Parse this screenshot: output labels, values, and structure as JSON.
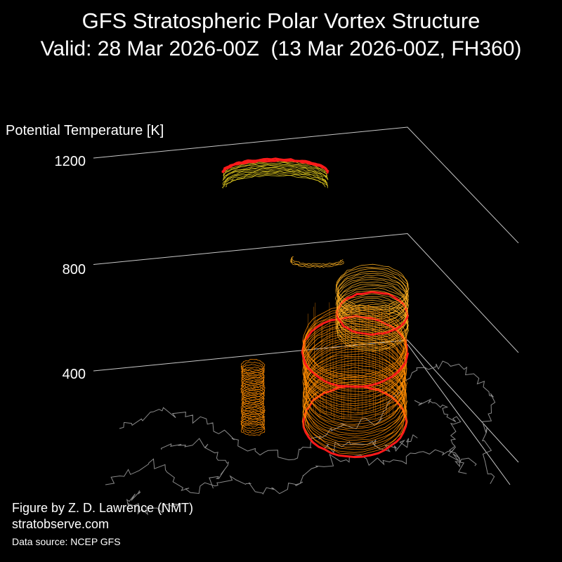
{
  "title": "GFS Stratospheric Polar Vortex Structure",
  "subtitle": "Valid: 28 Mar 2026-00Z  (13 Mar 2026-00Z, FH360)",
  "credit_author": "Figure by Z. D. Lawrence (NMT)",
  "credit_site": "stratobserve.com",
  "credit_source": "Data source: NCEP GFS",
  "colors": {
    "background": "#000000",
    "axis": "#c8c8c8",
    "coast": "#8a8a8a",
    "edge": "#ff1a1a",
    "vortex_low": "#ff8c00",
    "vortex_mid": "#ffb020",
    "vortex_high": "#e8d020"
  },
  "chart_data": {
    "type": "3d-isosurface",
    "zlabel": "Potential Temperature [K]",
    "zticks": [
      "400",
      "800",
      "1200"
    ],
    "ztick_values": [
      400,
      800,
      1200
    ],
    "grid": true,
    "features": [
      {
        "name": "main vortex column",
        "theta_range": [
          400,
          1000
        ]
      },
      {
        "name": "secondary lobe",
        "theta_range": [
          400,
          550
        ]
      },
      {
        "name": "upper vortex fragment",
        "theta_range": [
          1150,
          1230
        ]
      }
    ]
  }
}
